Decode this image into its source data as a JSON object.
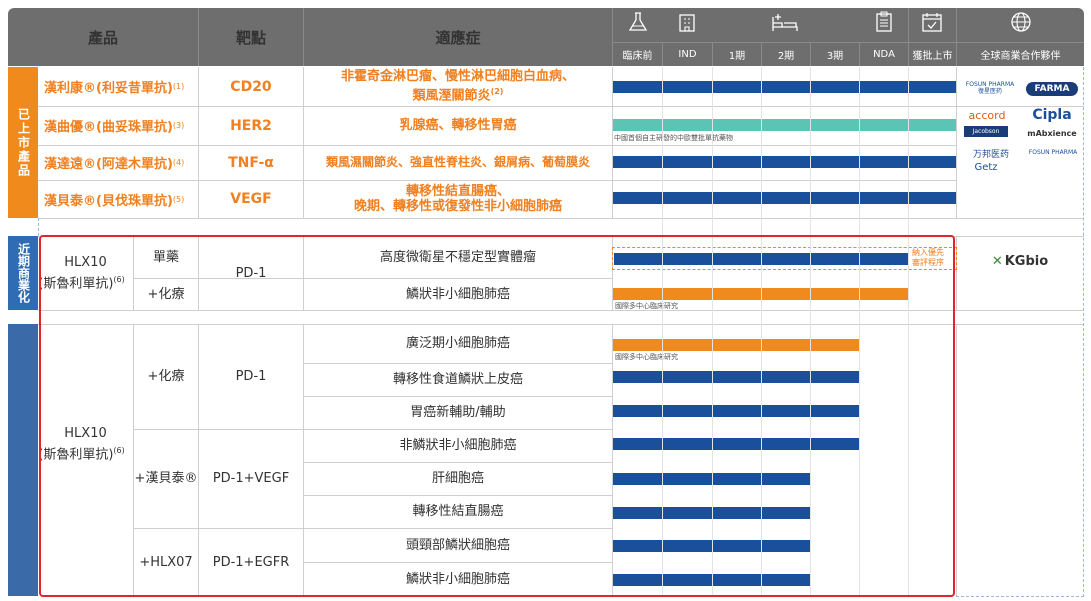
{
  "header": {
    "product": "產品",
    "target": "靶點",
    "indication": "適應症",
    "phases": [
      "臨床前",
      "IND",
      "1期",
      "2期",
      "3期",
      "NDA",
      "獲批上市"
    ],
    "partners": "全球商業合作夥伴"
  },
  "side_labels": {
    "marketed": "已上市產品",
    "near_term": "近期商業化"
  },
  "marketed": [
    {
      "name": "漢利康®(利妥昔單抗)",
      "sup": "(1)",
      "target": "CD20",
      "indication_l1": "非霍奇金淋巴瘤、慢性淋巴細胞白血病、",
      "indication_l2": "類風溼關節炎",
      "indication_sup": "(2)"
    },
    {
      "name": "漢曲優®(曲妥珠單抗)",
      "sup": "(3)",
      "target": "HER2",
      "indication_l1": "乳腺癌、轉移性胃癌",
      "indication_l2": "",
      "indication_sup": ""
    },
    {
      "name": "漢達遠®(阿達木單抗)",
      "sup": "(4)",
      "target": "TNF-α",
      "indication_l1": "類風濕關節炎、強直性脊柱炎、銀屑病、葡萄膜炎",
      "indication_l2": "",
      "indication_sup": ""
    },
    {
      "name": "漢貝泰®(貝伐珠單抗)",
      "sup": "(5)",
      "target": "VEGF",
      "indication_l1": "轉移性結直腸癌、",
      "indication_l2": "晚期、轉移性或復發性非小細胞肺癌",
      "indication_sup": ""
    }
  ],
  "hlx10_name": "HLX10",
  "hlx10_cn": "(斯魯利單抗)",
  "hlx10_sup": "(6)",
  "near_term": {
    "rows": [
      {
        "combo": "單藥",
        "indication": "高度微衛星不穩定型實體瘤"
      },
      {
        "combo": "+化療",
        "indication": "鱗狀非小細胞肺癌"
      }
    ],
    "target": "PD-1"
  },
  "pipeline": {
    "groups": [
      {
        "combo": "+化療",
        "target": "PD-1",
        "indications": [
          "廣泛期小細胞肺癌",
          "轉移性食道鱗狀上皮癌",
          "胃癌新輔助/輔助"
        ]
      },
      {
        "combo": "+漢貝泰®",
        "target": "PD-1+VEGF",
        "indications": [
          "非鱗狀非小細胞肺癌",
          "肝細胞癌",
          "轉移性結直腸癌"
        ]
      },
      {
        "combo": "+HLX07",
        "target": "PD-1+EGFR",
        "indications": [
          "頭頸部鱗狀細胞癌",
          "鱗狀非小細胞肺癌"
        ]
      }
    ]
  },
  "notes": {
    "china_first": "中國首個自主研發的中歐雙批單抗藥物",
    "intl_multicenter_1": "國際多中心臨床研究",
    "intl_multicenter_2": "國際多中心臨床研究",
    "priority_l1": "納入優先",
    "priority_l2": "審評程序"
  },
  "partners": {
    "fosun1": "FOSUN PHARMA",
    "fosun1_sub": "復星医药",
    "farma": "FARMA",
    "accord": "accord",
    "cipla": "Cipla",
    "jacobson": "Jacobson",
    "mabxience": "mAbxience",
    "wanbang": "万邦医药",
    "fosun2": "FOSUN PHARMA",
    "getz": "Getz",
    "kgbio": "KGbio"
  },
  "progress": {
    "marketed": [
      7,
      7,
      7,
      7
    ],
    "hlx10_msi": 6,
    "hlx10_sqnsclc": 6,
    "pipeline": [
      5,
      5,
      5,
      5,
      4,
      4,
      4,
      4
    ]
  },
  "colors": {
    "blue": "#1a4f9c",
    "orange": "#f08a1c",
    "teal": "#5bc4b5",
    "header": "#6e6e6e",
    "red_frame": "#e0262c"
  }
}
